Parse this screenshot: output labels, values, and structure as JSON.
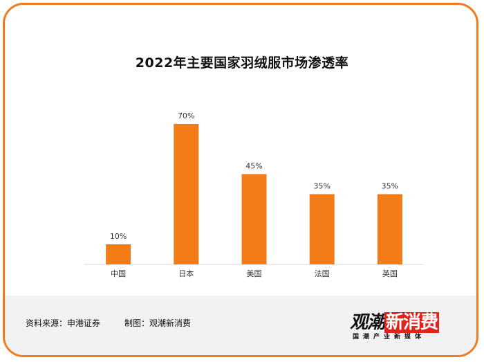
{
  "chart_data": {
    "type": "bar",
    "title": "2022年主要国家羽绒服市场渗透率",
    "categories": [
      "中国",
      "日本",
      "美国",
      "法国",
      "英国"
    ],
    "values": [
      10,
      70,
      45,
      35,
      35
    ],
    "value_labels": [
      "10%",
      "70%",
      "45%",
      "35%",
      "35%"
    ],
    "ylim": [
      0,
      80
    ],
    "bar_color": "#f47c16",
    "grid": false,
    "xlabel": "",
    "ylabel": ""
  },
  "footer": {
    "source": "资料来源：申港证券",
    "made_by": "制图：观潮新消费"
  },
  "logo": {
    "text_a": "观潮",
    "text_b": "新消费",
    "url": "tidesight.com",
    "tagline": "国潮产业新媒体"
  },
  "colors": {
    "frame": "#f07b1e",
    "bar": "#f47c16"
  }
}
